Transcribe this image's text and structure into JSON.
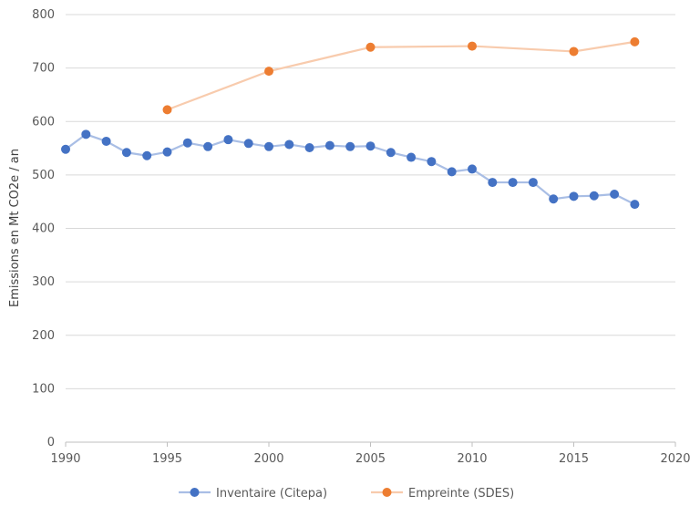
{
  "chart_data": {
    "type": "line",
    "title": "",
    "xlabel": "",
    "ylabel": "Emissions en Mt CO2e  / an",
    "xlim": [
      1990,
      2020
    ],
    "ylim": [
      0,
      800
    ],
    "x_ticks": [
      1990,
      1995,
      2000,
      2005,
      2010,
      2015,
      2020
    ],
    "y_ticks": [
      0,
      100,
      200,
      300,
      400,
      500,
      600,
      700,
      800
    ],
    "grid": "horizontal",
    "legend": "bottom",
    "series": [
      {
        "name": "Inventaire (Citepa)",
        "color": "#4472C4",
        "line_color": "#A9BEE5",
        "x": [
          1990,
          1991,
          1992,
          1993,
          1994,
          1995,
          1996,
          1997,
          1998,
          1999,
          2000,
          2001,
          2002,
          2003,
          2004,
          2005,
          2006,
          2007,
          2008,
          2009,
          2010,
          2011,
          2012,
          2013,
          2014,
          2015,
          2016,
          2017,
          2018
        ],
        "values": [
          548,
          576,
          563,
          542,
          536,
          543,
          560,
          553,
          566,
          559,
          553,
          557,
          551,
          555,
          553,
          554,
          542,
          533,
          525,
          506,
          511,
          486,
          486,
          486,
          455,
          460,
          461,
          464,
          445
        ]
      },
      {
        "name": "Empreinte (SDES)",
        "color": "#ED7D31",
        "line_color": "#F8CBAD",
        "x": [
          1995,
          2000,
          2005,
          2010,
          2015,
          2018
        ],
        "values": [
          622,
          694,
          739,
          741,
          731,
          749
        ]
      }
    ]
  }
}
